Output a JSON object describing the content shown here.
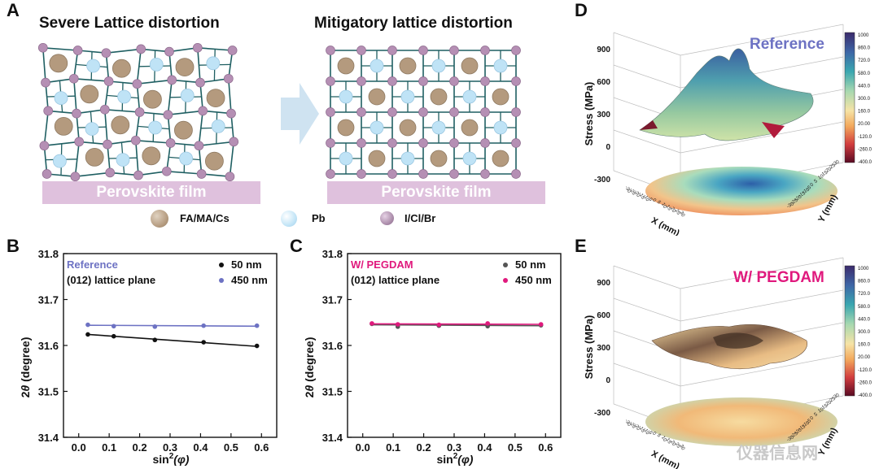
{
  "panels": {
    "a": "A",
    "b": "B",
    "c": "C",
    "d": "D",
    "e": "E"
  },
  "lattice": {
    "left_title": "Severe Lattice distortion",
    "right_title": "Mitigatory lattice distortion",
    "film_label": "Perovskite film",
    "legend": [
      {
        "label": "FA/MA/Cs",
        "color": "#b49a7e"
      },
      {
        "label": "Pb",
        "color": "#bfe3f6"
      },
      {
        "label": "I/Cl/Br",
        "color": "#a98aa8"
      }
    ],
    "colors": {
      "bond": "#1f5f62",
      "halide": "#b58fb4",
      "arrow": "#cfe3f1",
      "film": "#dfc1dd"
    }
  },
  "chart_data": [
    {
      "type": "scatter",
      "panel": "B",
      "title": "Reference",
      "subtitle": "(012) lattice plane",
      "xlabel_base": "sin",
      "xlabel_sup": "2",
      "xlabel_arg": "(φ)",
      "ylabel_prefix": "2",
      "ylabel_theta": "θ",
      "ylabel_suffix": " (degree)",
      "xlim": [
        -0.05,
        0.65
      ],
      "ylim": [
        31.4,
        31.8
      ],
      "xticks": [
        "0.0",
        "0.1",
        "0.2",
        "0.3",
        "0.4",
        "0.5",
        "0.6"
      ],
      "yticks": [
        "31.4",
        "31.5",
        "31.6",
        "31.7",
        "31.8"
      ],
      "title_color": "#6d72c3",
      "series": [
        {
          "name": "50 nm",
          "color": "#111111",
          "x": [
            0.03,
            0.115,
            0.25,
            0.41,
            0.585
          ],
          "y": [
            31.624,
            31.62,
            31.612,
            31.607,
            31.599
          ],
          "fit": [
            31.624,
            31.598
          ]
        },
        {
          "name": "450 nm",
          "color": "#6d72c3",
          "x": [
            0.03,
            0.115,
            0.25,
            0.41,
            0.585
          ],
          "y": [
            31.645,
            31.642,
            31.641,
            31.643,
            31.643
          ],
          "fit": [
            31.644,
            31.642
          ]
        }
      ]
    },
    {
      "type": "scatter",
      "panel": "C",
      "title": "W/ PEGDAM",
      "subtitle": "(012) lattice plane",
      "xlabel_base": "sin",
      "xlabel_sup": "2",
      "xlabel_arg": "(φ)",
      "ylabel_prefix": "2",
      "ylabel_theta": "θ",
      "ylabel_suffix": " (degree)",
      "xlim": [
        -0.05,
        0.65
      ],
      "ylim": [
        31.4,
        31.8
      ],
      "xticks": [
        "0.0",
        "0.1",
        "0.2",
        "0.3",
        "0.4",
        "0.5",
        "0.6"
      ],
      "yticks": [
        "31.4",
        "31.5",
        "31.6",
        "31.7",
        "31.8"
      ],
      "title_color": "#e0197d",
      "series": [
        {
          "name": "50 nm",
          "color": "#555555",
          "x": [
            0.03,
            0.115,
            0.25,
            0.41,
            0.585
          ],
          "y": [
            31.647,
            31.641,
            31.643,
            31.642,
            31.644
          ],
          "fit": [
            31.645,
            31.643
          ]
        },
        {
          "name": "450 nm",
          "color": "#e0197d",
          "x": [
            0.03,
            0.115,
            0.25,
            0.41,
            0.585
          ],
          "y": [
            31.648,
            31.646,
            31.645,
            31.648,
            31.646
          ],
          "fit": [
            31.647,
            31.646
          ]
        }
      ]
    },
    {
      "type": "surface3d",
      "panel": "D",
      "title": "Reference",
      "title_color": "#6d72c3",
      "zlabel": "Stress (MPa)",
      "xlabel": "X (mm)",
      "ylabel": "Y (mm)",
      "zticks": [
        "900",
        "600",
        "300",
        "0",
        "-300"
      ],
      "xyticks": [
        "-30",
        "-25",
        "-20",
        "-15",
        "-10",
        "-5",
        "0",
        "5",
        "10",
        "15",
        "20",
        "25",
        "30"
      ],
      "colorbar": [
        "1000",
        "860.0",
        "720.0",
        "580.0",
        "440.0",
        "300.0",
        "160.0",
        "20.00",
        "-120.0",
        "-260.0",
        "-400.0"
      ]
    },
    {
      "type": "surface3d",
      "panel": "E",
      "title": "W/ PEGDAM",
      "title_color": "#e0197d",
      "zlabel": "Stress (MPa)",
      "xlabel": "X (mm)",
      "ylabel": "Y (mm)",
      "zticks": [
        "900",
        "600",
        "300",
        "0",
        "-300"
      ],
      "xyticks": [
        "-30",
        "-25",
        "-20",
        "-15",
        "-10",
        "-5",
        "0",
        "5",
        "10",
        "15",
        "20",
        "25",
        "30"
      ],
      "colorbar": [
        "1000",
        "860.0",
        "720.0",
        "580.0",
        "440.0",
        "300.0",
        "160.0",
        "20.00",
        "-120.0",
        "-260.0",
        "-400.0"
      ]
    }
  ],
  "watermark": "仪器信息网"
}
